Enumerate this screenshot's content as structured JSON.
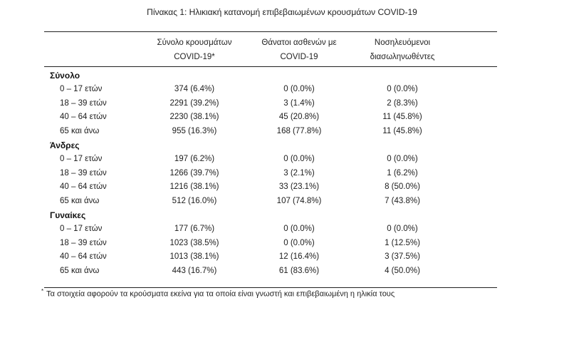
{
  "title": "Πίνακας 1: Ηλικιακή κατανομή επιβεβαιωμένων κρουσμάτων COVID-19",
  "headers": [
    {
      "line1": "Σύνολο κρουσμάτων",
      "line2": "COVID-19*"
    },
    {
      "line1": "Θάνατοι ασθενών με",
      "line2": "COVID-19"
    },
    {
      "line1": "Νοσηλευόμενοι",
      "line2": "διασωληνωθέντες"
    }
  ],
  "groups": [
    {
      "name": "Σύνολο",
      "rows": [
        {
          "age": "0 – 17 ετών",
          "cases": "374 (6.4%)",
          "deaths": "0 (0.0%)",
          "intubated": "0 (0.0%)"
        },
        {
          "age": "18 – 39 ετών",
          "cases": "2291 (39.2%)",
          "deaths": "3 (1.4%)",
          "intubated": "2 (8.3%)"
        },
        {
          "age": "40 – 64 ετών",
          "cases": "2230 (38.1%)",
          "deaths": "45 (20.8%)",
          "intubated": "11 (45.8%)"
        },
        {
          "age": "65 και άνω",
          "cases": "955 (16.3%)",
          "deaths": "168 (77.8%)",
          "intubated": "11 (45.8%)"
        }
      ]
    },
    {
      "name": "Άνδρες",
      "rows": [
        {
          "age": "0 – 17 ετών",
          "cases": "197 (6.2%)",
          "deaths": "0 (0.0%)",
          "intubated": "0 (0.0%)"
        },
        {
          "age": "18 – 39 ετών",
          "cases": "1266 (39.7%)",
          "deaths": "3 (2.1%)",
          "intubated": "1 (6.2%)"
        },
        {
          "age": "40 – 64 ετών",
          "cases": "1216 (38.1%)",
          "deaths": "33 (23.1%)",
          "intubated": "8 (50.0%)"
        },
        {
          "age": "65 και άνω",
          "cases": "512 (16.0%)",
          "deaths": "107 (74.8%)",
          "intubated": "7 (43.8%)"
        }
      ]
    },
    {
      "name": "Γυναίκες",
      "rows": [
        {
          "age": "0 – 17 ετών",
          "cases": "177 (6.7%)",
          "deaths": "0 (0.0%)",
          "intubated": "0 (0.0%)"
        },
        {
          "age": "18 – 39 ετών",
          "cases": "1023 (38.5%)",
          "deaths": "0 (0.0%)",
          "intubated": "1 (12.5%)"
        },
        {
          "age": "40 – 64 ετών",
          "cases": "1013 (38.1%)",
          "deaths": "12 (16.4%)",
          "intubated": "3 (37.5%)"
        },
        {
          "age": "65 και άνω",
          "cases": "443 (16.7%)",
          "deaths": "61 (83.6%)",
          "intubated": "4 (50.0%)"
        }
      ]
    }
  ],
  "footnote": {
    "mark": "*",
    "text": "Τα στοιχεία αφορούν τα κρούσματα εκείνα για τα οποία είναι γνωστή και επιβεβαιωμένη η ηλικία τους"
  }
}
